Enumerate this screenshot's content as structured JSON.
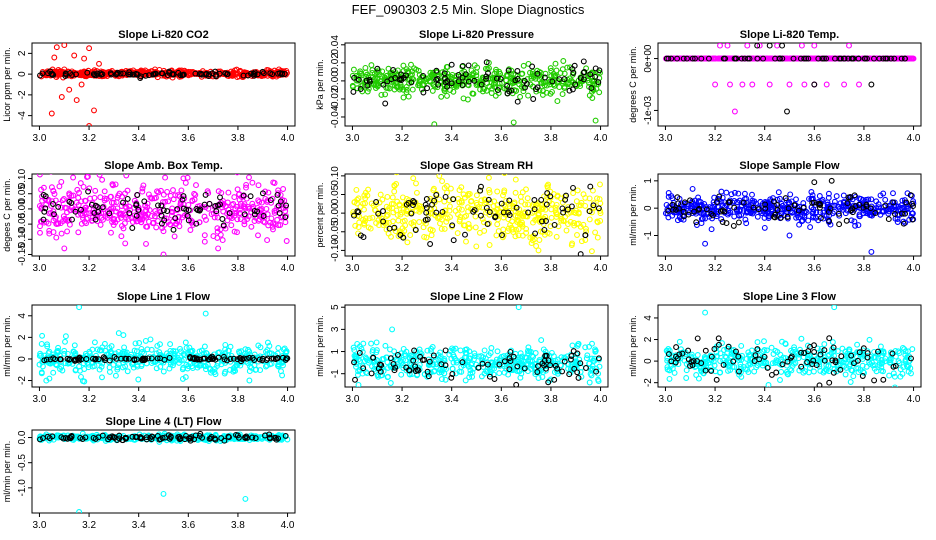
{
  "page_title": "FEF_090303  2.5 Min. Slope Diagnostics",
  "colors": {
    "black": "#000000",
    "red": "#ff0000",
    "green": "#22cc00",
    "magenta": "#ff00ff",
    "yellow": "#ffff00",
    "blue": "#0000ff",
    "cyan": "#00ffff"
  },
  "chart_data": [
    {
      "type": "scatter",
      "title": "Slope Li-820 CO2",
      "xlabel": "",
      "ylabel": "Licor ppm per min.",
      "xlim": [
        2.97,
        4.03
      ],
      "ylim": [
        -5.0,
        3.0
      ],
      "xticks": [
        3.0,
        3.2,
        3.4,
        3.6,
        3.8,
        4.0
      ],
      "xtick_labels": [
        "3.0",
        "3.2",
        "3.4",
        "3.6",
        "3.8",
        "4.0"
      ],
      "yticks": [
        -4,
        -2,
        0,
        2
      ],
      "ytick_labels": [
        "-4",
        "-2",
        "0",
        "2"
      ],
      "series": [
        {
          "name": "primary",
          "color": "red",
          "n": 480,
          "center": 0.05,
          "spread": 0.15,
          "outliers": [
            [
              3.05,
              -3.8
            ],
            [
              3.07,
              2.6
            ],
            [
              3.1,
              2.8
            ],
            [
              3.12,
              -1.5
            ],
            [
              3.15,
              -2.5
            ],
            [
              3.18,
              1.5
            ],
            [
              3.2,
              2.5
            ],
            [
              3.2,
              -5.0
            ],
            [
              3.22,
              -3.5
            ],
            [
              3.09,
              -2.2
            ],
            [
              3.14,
              1.8
            ],
            [
              3.17,
              -1.0
            ],
            [
              3.24,
              1.0
            ],
            [
              3.06,
              1.6
            ]
          ]
        },
        {
          "name": "secondary",
          "color": "black",
          "n": 90,
          "center": 0.0,
          "spread": 0.1,
          "outliers": []
        }
      ]
    },
    {
      "type": "scatter",
      "title": "Slope Li-820 Pressure",
      "xlabel": "",
      "ylabel": "kPa per min.",
      "xlim": [
        2.97,
        4.03
      ],
      "ylim": [
        -0.05,
        0.042
      ],
      "xticks": [
        3.0,
        3.2,
        3.4,
        3.6,
        3.8,
        4.0
      ],
      "xtick_labels": [
        "3.0",
        "3.2",
        "3.4",
        "3.6",
        "3.8",
        "4.0"
      ],
      "yticks": [
        -0.04,
        -0.02,
        0.0,
        0.02,
        0.04
      ],
      "ytick_labels": [
        "-0.04",
        "-0.02",
        "0.00",
        "0.02",
        "0.04"
      ],
      "series": [
        {
          "name": "primary",
          "color": "green",
          "n": 460,
          "center": 0.0,
          "spread": 0.008,
          "outliers": [
            [
              3.33,
              -0.048
            ],
            [
              3.65,
              -0.046
            ],
            [
              3.98,
              -0.044
            ],
            [
              3.85,
              0.022
            ],
            [
              3.55,
              0.02
            ]
          ]
        },
        {
          "name": "secondary",
          "color": "black",
          "n": 90,
          "center": 0.0,
          "spread": 0.008,
          "outliers": [
            [
              3.4,
              0.018
            ]
          ]
        }
      ]
    },
    {
      "type": "scatter",
      "title": "Slope Li-820 Temp.",
      "xlabel": "",
      "ylabel": "degrees C per min.",
      "xlim": [
        2.97,
        4.03
      ],
      "ylim": [
        -0.0013,
        0.0003
      ],
      "xticks": [
        3.0,
        3.2,
        3.4,
        3.6,
        3.8,
        4.0
      ],
      "xtick_labels": [
        "3.0",
        "3.2",
        "3.4",
        "3.6",
        "3.8",
        "4.0"
      ],
      "yticks": [
        -0.001,
        0.0
      ],
      "ytick_labels": [
        "-1e-03",
        "0e+00"
      ],
      "series": [
        {
          "name": "primary",
          "color": "magenta",
          "n": 500,
          "center": 0.0,
          "spread": 0.0,
          "levels": [
            0.0
          ],
          "outliers": [
            [
              3.22,
              0.00025
            ],
            [
              3.25,
              0.00025
            ],
            [
              3.33,
              0.00025
            ],
            [
              3.38,
              0.00025
            ],
            [
              3.45,
              0.00025
            ],
            [
              3.55,
              0.00025
            ],
            [
              3.6,
              0.00025
            ],
            [
              3.74,
              0.00025
            ],
            [
              3.2,
              -0.0005
            ],
            [
              3.26,
              -0.0005
            ],
            [
              3.31,
              -0.0005
            ],
            [
              3.35,
              -0.0005
            ],
            [
              3.42,
              -0.0005
            ],
            [
              3.5,
              -0.0005
            ],
            [
              3.56,
              -0.0005
            ],
            [
              3.6,
              -0.0005
            ],
            [
              3.65,
              -0.0005
            ],
            [
              3.72,
              -0.0005
            ],
            [
              3.78,
              -0.0005
            ],
            [
              3.28,
              -0.00102
            ]
          ]
        },
        {
          "name": "secondary",
          "color": "black",
          "n": 60,
          "center": 0.0,
          "spread": 0.0,
          "levels": [
            0.0
          ],
          "outliers": [
            [
              3.37,
              0.00025
            ],
            [
              3.42,
              0.00025
            ],
            [
              3.47,
              0.00025
            ],
            [
              3.6,
              -0.0005
            ],
            [
              3.83,
              -0.0005
            ],
            [
              3.49,
              -0.00102
            ]
          ]
        }
      ]
    },
    {
      "type": "scatter",
      "title": "Slope Amb. Box Temp.",
      "xlabel": "",
      "ylabel": "degees C per min.",
      "xlim": [
        2.97,
        4.03
      ],
      "ylim": [
        -0.155,
        0.115
      ],
      "xticks": [
        3.0,
        3.2,
        3.4,
        3.6,
        3.8,
        4.0
      ],
      "xtick_labels": [
        "3.0",
        "3.2",
        "3.4",
        "3.6",
        "3.8",
        "4.0"
      ],
      "yticks": [
        -0.15,
        -0.1,
        -0.05,
        0.0,
        0.05,
        0.1
      ],
      "ytick_labels": [
        "-0.15",
        "-0.10",
        "-0.05",
        "0.00",
        "0.05",
        "0.10"
      ],
      "series": [
        {
          "name": "primary",
          "color": "magenta",
          "n": 480,
          "center": 0.0,
          "spread": 0.045,
          "outliers": [
            [
              3.1,
              -0.13
            ],
            [
              3.5,
              -0.15
            ],
            [
              3.35,
              0.11
            ],
            [
              3.72,
              -0.13
            ]
          ]
        },
        {
          "name": "secondary",
          "color": "black",
          "n": 80,
          "center": 0.0,
          "spread": 0.035,
          "outliers": []
        }
      ]
    },
    {
      "type": "scatter",
      "title": "Slope Gas Stream RH",
      "xlabel": "",
      "ylabel": "percent per min.",
      "xlim": [
        2.97,
        4.03
      ],
      "ylim": [
        -0.115,
        0.105
      ],
      "xticks": [
        3.0,
        3.2,
        3.4,
        3.6,
        3.8,
        4.0
      ],
      "xtick_labels": [
        "3.0",
        "3.2",
        "3.4",
        "3.6",
        "3.8",
        "4.0"
      ],
      "yticks": [
        -0.1,
        -0.05,
        0.0,
        0.05,
        0.1
      ],
      "ytick_labels": [
        "-0.10",
        "-0.05",
        "0.00",
        "0.05",
        "0.10"
      ],
      "series": [
        {
          "name": "primary",
          "color": "yellow",
          "n": 460,
          "center": 0.0,
          "spread": 0.035,
          "outliers": [
            [
              3.35,
              0.1
            ],
            [
              3.55,
              0.095
            ],
            [
              3.75,
              -0.1
            ]
          ]
        },
        {
          "name": "secondary",
          "color": "black",
          "n": 80,
          "center": 0.0,
          "spread": 0.035,
          "outliers": [
            [
              3.92,
              -0.11
            ]
          ]
        }
      ]
    },
    {
      "type": "scatter",
      "title": "Slope Sample Flow",
      "xlabel": "",
      "ylabel": "ml/min per min.",
      "xlim": [
        2.97,
        4.03
      ],
      "ylim": [
        -1.75,
        1.25
      ],
      "xticks": [
        3.0,
        3.2,
        3.4,
        3.6,
        3.8,
        4.0
      ],
      "xtick_labels": [
        "3.0",
        "3.2",
        "3.4",
        "3.6",
        "3.8",
        "4.0"
      ],
      "yticks": [
        -1,
        0,
        1
      ],
      "ytick_labels": [
        "-1",
        "0",
        "1"
      ],
      "series": [
        {
          "name": "primary",
          "color": "blue",
          "n": 480,
          "center": 0.0,
          "spread": 0.25,
          "outliers": [
            [
              3.16,
              -1.3
            ],
            [
              3.5,
              -1.0
            ],
            [
              3.83,
              -1.6
            ]
          ]
        },
        {
          "name": "secondary",
          "color": "black",
          "n": 90,
          "center": 0.0,
          "spread": 0.3,
          "outliers": [
            [
              3.67,
              1.0
            ],
            [
              3.6,
              0.95
            ]
          ]
        }
      ]
    },
    {
      "type": "scatter",
      "title": "Slope Line 1 Flow",
      "xlabel": "",
      "ylabel": "ml/min per min.",
      "xlim": [
        2.97,
        4.03
      ],
      "ylim": [
        -2.6,
        5.0
      ],
      "xticks": [
        3.0,
        3.2,
        3.4,
        3.6,
        3.8,
        4.0
      ],
      "xtick_labels": [
        "3.0",
        "3.2",
        "3.4",
        "3.6",
        "3.8",
        "4.0"
      ],
      "yticks": [
        -2,
        0,
        2,
        4
      ],
      "ytick_labels": [
        "-2",
        "0",
        "2",
        "4"
      ],
      "series": [
        {
          "name": "primary",
          "color": "cyan",
          "n": 440,
          "center": 0.0,
          "spread": 0.7,
          "outliers": [
            [
              3.16,
              4.8
            ],
            [
              3.67,
              4.2
            ],
            [
              3.32,
              2.4
            ]
          ]
        },
        {
          "name": "secondary",
          "color": "black",
          "n": 100,
          "center": 0.0,
          "spread": 0.08,
          "outliers": []
        }
      ]
    },
    {
      "type": "scatter",
      "title": "Slope Line 2 Flow",
      "xlabel": "",
      "ylabel": "ml/min per min.",
      "xlim": [
        2.97,
        4.03
      ],
      "ylim": [
        -2.2,
        5.2
      ],
      "xticks": [
        3.0,
        3.2,
        3.4,
        3.6,
        3.8,
        4.0
      ],
      "xtick_labels": [
        "3.0",
        "3.2",
        "3.4",
        "3.6",
        "3.8",
        "4.0"
      ],
      "yticks": [
        -1,
        1,
        3,
        5
      ],
      "ytick_labels": [
        "-1",
        "1",
        "3",
        "5"
      ],
      "series": [
        {
          "name": "primary",
          "color": "cyan",
          "n": 440,
          "center": 0.0,
          "spread": 0.75,
          "outliers": [
            [
              3.16,
              3.0
            ],
            [
              3.67,
              5.0
            ]
          ]
        },
        {
          "name": "secondary",
          "color": "black",
          "n": 80,
          "center": 0.0,
          "spread": 0.7,
          "outliers": [
            [
              3.66,
              -2.0
            ]
          ]
        }
      ]
    },
    {
      "type": "scatter",
      "title": "Slope Line 3 Flow",
      "xlabel": "",
      "ylabel": "ml/min per min.",
      "xlim": [
        2.97,
        4.03
      ],
      "ylim": [
        -2.4,
        5.2
      ],
      "xticks": [
        3.0,
        3.2,
        3.4,
        3.6,
        3.8,
        4.0
      ],
      "xtick_labels": [
        "3.0",
        "3.2",
        "3.4",
        "3.6",
        "3.8",
        "4.0"
      ],
      "yticks": [
        -2,
        0,
        2,
        4
      ],
      "ytick_labels": [
        "-2",
        "0",
        "2",
        "4"
      ],
      "series": [
        {
          "name": "primary",
          "color": "cyan",
          "n": 440,
          "center": 0.0,
          "spread": 0.8,
          "outliers": [
            [
              3.16,
              4.5
            ],
            [
              3.68,
              5.0
            ]
          ]
        },
        {
          "name": "secondary",
          "color": "black",
          "n": 80,
          "center": 0.0,
          "spread": 0.8,
          "outliers": [
            [
              3.66,
              -2.0
            ],
            [
              3.13,
              2.1
            ]
          ]
        }
      ]
    },
    {
      "type": "scatter",
      "title": "Slope Line 4 (LT) Flow",
      "xlabel": "",
      "ylabel": "ml/min per min.",
      "xlim": [
        2.97,
        4.03
      ],
      "ylim": [
        -1.5,
        0.15
      ],
      "xticks": [
        3.0,
        3.2,
        3.4,
        3.6,
        3.8,
        4.0
      ],
      "xtick_labels": [
        "3.0",
        "3.2",
        "3.4",
        "3.6",
        "3.8",
        "4.0"
      ],
      "yticks": [
        -1.0,
        -0.5,
        0.0
      ],
      "ytick_labels": [
        "-1.0",
        "-0.5",
        "0.0"
      ],
      "series": [
        {
          "name": "primary",
          "color": "cyan",
          "n": 440,
          "center": 0.0,
          "spread": 0.03,
          "outliers": [
            [
              3.16,
              -1.48
            ],
            [
              3.5,
              -1.12
            ],
            [
              3.83,
              -1.22
            ]
          ]
        },
        {
          "name": "secondary",
          "color": "black",
          "n": 100,
          "center": 0.0,
          "spread": 0.03,
          "outliers": []
        }
      ]
    }
  ]
}
